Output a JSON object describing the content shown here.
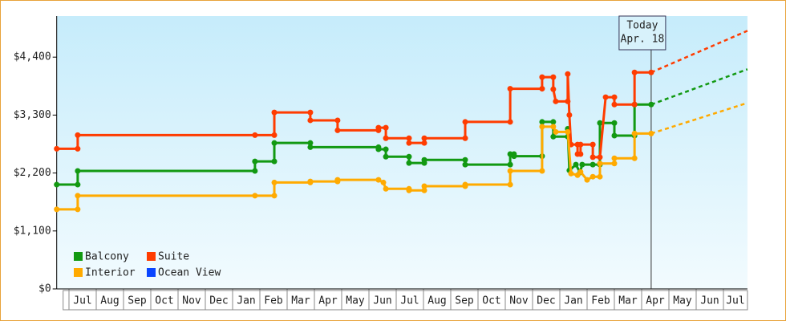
{
  "chart_data": {
    "type": "step-line",
    "categories": [
      null,
      "Jul",
      "Aug",
      "Sep",
      "Oct",
      "Nov",
      "Dec",
      "Jan",
      "Feb",
      "Mar",
      "Apr",
      "May",
      "Jun",
      "Jul",
      "Aug",
      "Sep",
      "Oct",
      "Nov",
      "Dec",
      "Jan",
      "Feb",
      "Mar",
      "Apr",
      "May",
      "Jun",
      "Jul"
    ],
    "xlim": [
      -0.45,
      24.88
    ],
    "ylim": [
      0,
      5180
    ],
    "yticks": [
      {
        "value": 0,
        "label": "$0"
      },
      {
        "value": 1100,
        "label": "$1,100"
      },
      {
        "value": 2200,
        "label": "$2,200"
      },
      {
        "value": 3300,
        "label": "$3,300"
      },
      {
        "value": 4400,
        "label": "$4,400"
      }
    ],
    "today": {
      "x": 21.35,
      "text": [
        "Today",
        "Apr. 18"
      ]
    },
    "series": [
      {
        "name": "Balcony",
        "color": "#129912",
        "x": [
          -0.45,
          0.32,
          0.32,
          6.82,
          6.82,
          7.53,
          7.53,
          8.85,
          8.85,
          11.35,
          11.35,
          11.62,
          11.62,
          12.47,
          12.47,
          13.03,
          13.03,
          14.53,
          14.53,
          16.18,
          16.18,
          16.32,
          16.32,
          17.35,
          17.35,
          17.76,
          17.76,
          18.29,
          18.29,
          18.35,
          18.59,
          18.74,
          18.82,
          19.21,
          19.47,
          19.47,
          20.0,
          20.0,
          20.74,
          20.74,
          21.35
        ],
        "values": [
          1980,
          1980,
          2240,
          2240,
          2420,
          2420,
          2770,
          2770,
          2690,
          2690,
          2650,
          2650,
          2510,
          2510,
          2390,
          2390,
          2450,
          2450,
          2360,
          2360,
          2560,
          2560,
          2520,
          2520,
          3170,
          3170,
          2890,
          2890,
          3040,
          2250,
          2360,
          2210,
          2360,
          2360,
          2360,
          3150,
          3150,
          2910,
          2910,
          3500,
          3500
        ],
        "forecast": {
          "x": [
            21.35,
            24.88
          ],
          "values": [
            3500,
            4170
          ]
        }
      },
      {
        "name": "Suite",
        "color": "#ff3c00",
        "x": [
          -0.45,
          0.32,
          0.32,
          6.82,
          7.53,
          7.53,
          8.85,
          8.85,
          9.85,
          9.85,
          11.35,
          11.35,
          11.62,
          11.62,
          12.47,
          12.47,
          13.03,
          13.03,
          14.53,
          14.53,
          16.18,
          16.18,
          17.35,
          17.35,
          17.76,
          17.76,
          17.85,
          18.29,
          18.29,
          18.35,
          18.41,
          18.65,
          18.65,
          18.76,
          18.76,
          19.21,
          19.21,
          19.47,
          19.68,
          20.0,
          20.0,
          20.74,
          20.74,
          21.35
        ],
        "values": [
          2660,
          2660,
          2920,
          2920,
          2920,
          3350,
          3350,
          3200,
          3200,
          3010,
          3010,
          3060,
          3060,
          2860,
          2860,
          2770,
          2770,
          2860,
          2860,
          3170,
          3170,
          3800,
          3800,
          4020,
          4020,
          3790,
          3560,
          3560,
          4080,
          3300,
          2740,
          2740,
          2560,
          2560,
          2740,
          2740,
          2500,
          2500,
          3640,
          3640,
          3500,
          3500,
          4110,
          4110
        ],
        "forecast": {
          "x": [
            21.35,
            24.88
          ],
          "values": [
            4110,
            4900
          ]
        }
      },
      {
        "name": "Interior",
        "color": "#ffaa00",
        "x": [
          -0.45,
          0.32,
          0.32,
          6.82,
          7.53,
          7.53,
          8.85,
          8.85,
          9.85,
          9.85,
          11.35,
          11.53,
          11.62,
          12.47,
          12.47,
          13.03,
          13.03,
          14.53,
          14.53,
          16.18,
          16.18,
          17.35,
          17.35,
          17.76,
          17.85,
          18.29,
          18.41,
          18.65,
          18.76,
          19.0,
          19.21,
          19.47,
          19.47,
          20.0,
          20.0,
          20.74,
          20.74,
          21.35
        ],
        "values": [
          1510,
          1510,
          1770,
          1770,
          1770,
          2020,
          2020,
          2040,
          2040,
          2070,
          2070,
          2020,
          1900,
          1900,
          1870,
          1870,
          1950,
          1950,
          1980,
          1980,
          2240,
          2240,
          3080,
          3080,
          2980,
          2980,
          2190,
          2160,
          2220,
          2070,
          2130,
          2130,
          2380,
          2380,
          2480,
          2480,
          2950,
          2950
        ],
        "forecast": {
          "x": [
            21.35,
            24.88
          ],
          "values": [
            2950,
            3530
          ]
        }
      },
      {
        "name": "Ocean View",
        "color": "#0a45ff",
        "x": [],
        "values": []
      }
    ]
  }
}
